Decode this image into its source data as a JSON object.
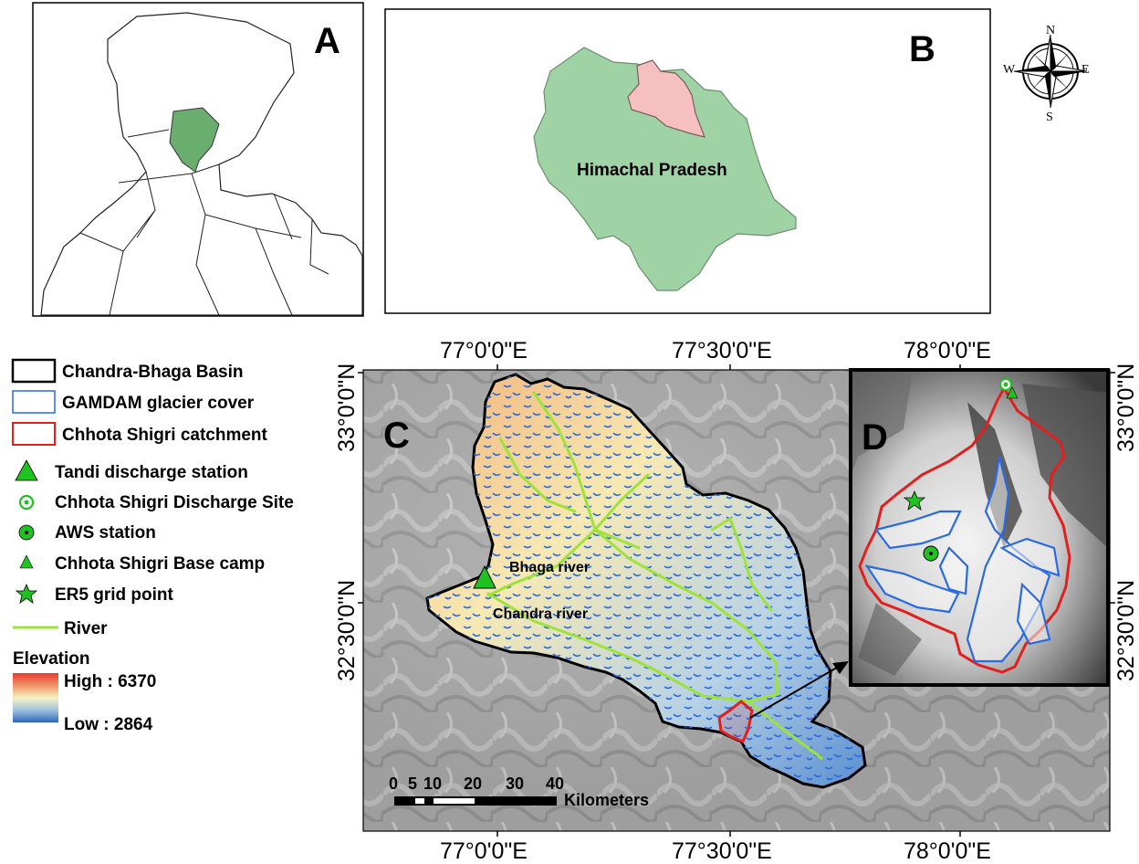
{
  "panels": {
    "a": {
      "letter": "A"
    },
    "b": {
      "letter": "B",
      "region_label": "Himachal Pradesh"
    },
    "c": {
      "letter": "C"
    },
    "d": {
      "letter": "D"
    }
  },
  "compass": {
    "n": "N",
    "s": "S",
    "e": "E",
    "w": "W"
  },
  "coords": {
    "top_lon": [
      "77°0'0\"E",
      "77°30'0\"E",
      "78°0'0\"E"
    ],
    "bottom_lon": [
      "77°0'0\"E",
      "77°30'0\"E",
      "78°0'0\"E"
    ],
    "left_lat": [
      "33°0'0\"N",
      "32°30'0\"N"
    ],
    "right_lat": [
      "33°0'0\"N",
      "32°30'0\"N"
    ]
  },
  "legend": {
    "basin": "Chandra-Bhaga Basin",
    "glacier": "GAMDAM glacier cover",
    "catchment": "Chhota Shigri catchment",
    "tandi": "Tandi discharge station",
    "discharge_site": "Chhota Shigri Discharge Site",
    "aws": "AWS station",
    "base_camp": "Chhota Shigri Base camp",
    "er5": "ER5 grid point",
    "river": "River",
    "elevation_title": "Elevation",
    "high": "High : 6370",
    "low": "Low : 2864"
  },
  "rivers": {
    "bhaga": "Bhaga river",
    "chandra": "Chandra river"
  },
  "scalebar": {
    "ticks": [
      "0",
      "5",
      "10",
      "20",
      "30",
      "40"
    ],
    "unit": "Kilometers"
  },
  "colors": {
    "himachal_fill": "#9fd3a6",
    "lahaul_fill": "#f7c0c0",
    "india_state_fill": "#6aae6f",
    "glacier": "#2a6ae0",
    "river": "#9fe23a",
    "catchment": "#e0201e",
    "station": "#1fc21f"
  }
}
